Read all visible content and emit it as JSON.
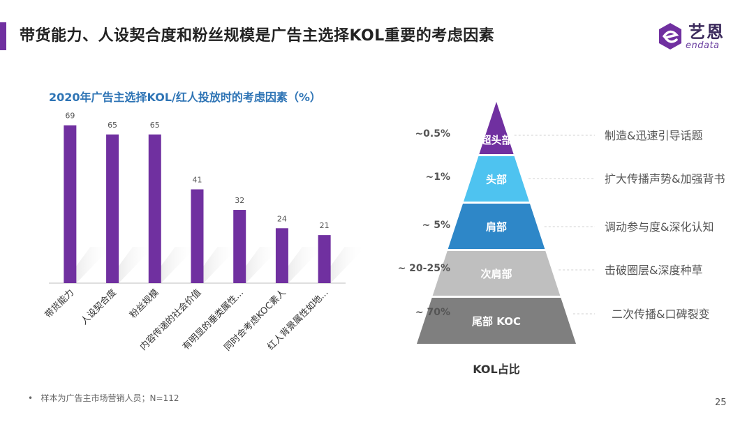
{
  "header": {
    "title": "带货能力、人设契合度和粉丝规模是广告主选择KOL重要的考虑因素"
  },
  "logo": {
    "cn": "艺恩",
    "en": "endata"
  },
  "chart_data": [
    {
      "type": "bar",
      "title": "2020年广告主选择KOL/红人投放时的考虑因素（%）",
      "categories": [
        "带货能力",
        "人设契合度",
        "粉丝规模",
        "内容传递的社会价值",
        "有明显的垂类属性...",
        "同时会考虑KOC素人",
        "红人背景属性如地..."
      ],
      "values": [
        69,
        65,
        65,
        41,
        32,
        24,
        21
      ],
      "ylim": [
        0,
        75
      ],
      "xlabel": "",
      "ylabel": "",
      "color": "#7030a0"
    },
    {
      "type": "pyramid",
      "title": "KOL占比",
      "levels": [
        {
          "label": "超头部",
          "share": "~0.5%",
          "role": "制造&迅速引导话题",
          "color": "#7030a0"
        },
        {
          "label": "头部",
          "share": "~1%",
          "role": "扩大传播声势&加强背书",
          "color": "#4ec3f0"
        },
        {
          "label": "肩部",
          "share": "~ 5%",
          "role": "调动参与度&深化认知",
          "color": "#2e87c8"
        },
        {
          "label": "次肩部",
          "share": "~ 20-25%",
          "role": "击破圈层&深度种草",
          "color": "#bfbfbf"
        },
        {
          "label": "尾部 KOC",
          "share": "~ 70%",
          "role": "二次传播&口碑裂变",
          "color": "#7f7f7f"
        }
      ]
    }
  ],
  "footnote": "样本为广告主市场营销人员；N=112",
  "page_number": "25"
}
